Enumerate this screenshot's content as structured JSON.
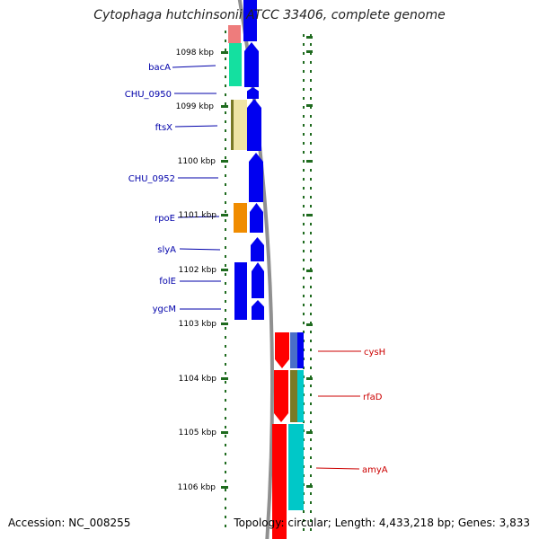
{
  "title": "Cytophaga hutchinsonii ATCC 33406, complete genome",
  "accession": "Accession: NC_008255",
  "topology": "Topology: circular; Length: 4,433,218 bp; Genes: 3,833",
  "colors": {
    "backbone": "#909090",
    "left_label": "#0000aa",
    "right_label": "#cc0000",
    "tick": "#1f6b1f",
    "blue": "#0000f0",
    "red": "#ff0000",
    "teal": "#00c8c8",
    "olive": "#7a7a26",
    "slate": "#4a6ec8",
    "salmon": "#ee7c7c",
    "green": "#14e0a0",
    "cream": "#efe4a4",
    "orange": "#f08c00"
  },
  "scale_labels": [
    "1098 kbp",
    "1099 kbp",
    "1100 kbp",
    "1101 kbp",
    "1102 kbp",
    "1103 kbp",
    "1104 kbp",
    "1105 kbp",
    "1106 kbp"
  ],
  "genes_left": [
    "bacA",
    "CHU_0950",
    "ftsX",
    "CHU_0952",
    "rpoE",
    "slyA",
    "folE",
    "ygcM"
  ],
  "genes_right": [
    "cysH",
    "rfaD",
    "amyA"
  ]
}
